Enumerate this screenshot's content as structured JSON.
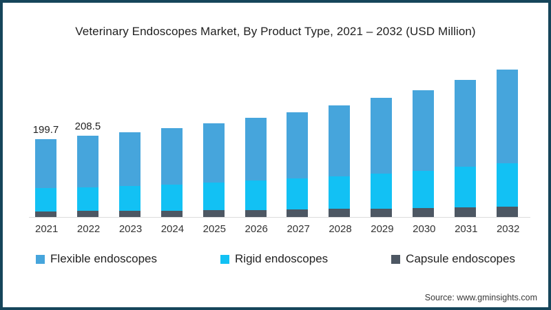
{
  "page": {
    "title": "Veterinary Endoscopes Market, By Product Type, 2021 – 2032 (USD Million)",
    "source": "Source: www.gminsights.com"
  },
  "colors": {
    "flexible": "#46A5DC",
    "rigid": "#12C1F4",
    "capsule": "#4D5763",
    "border": "#16455A",
    "baseline": "#DCDCDC",
    "title_text": "#1F1F1F",
    "axis_text": "#333333"
  },
  "chart_data": {
    "type": "bar",
    "stacked": true,
    "title": "Veterinary Endoscopes Market, By Product Type, 2021 – 2032 (USD Million)",
    "unit": "USD Million",
    "xlabel": "",
    "ylabel": "",
    "grid": false,
    "legend_position": "bottom",
    "categories": [
      "2021",
      "2022",
      "2023",
      "2024",
      "2025",
      "2026",
      "2027",
      "2028",
      "2029",
      "2030",
      "2031",
      "2032"
    ],
    "series": [
      {
        "name": "Flexible endoscopes",
        "color_key": "flexible",
        "values": [
          126.3,
          131.9,
          137.7,
          144.5,
          151.7,
          160.8,
          170.2,
          180.7,
          193.1,
          206.1,
          221.9,
          239.1
        ]
      },
      {
        "name": "Rigid endoscopes",
        "color_key": "rigid",
        "values": [
          58.8,
          61.4,
          64.0,
          67.1,
          70.4,
          74.6,
          78.9,
          83.7,
          89.4,
          95.4,
          102.7,
          110.6
        ]
      },
      {
        "name": "Capsule endoscopes",
        "color_key": "capsule",
        "values": [
          14.6,
          15.2,
          15.8,
          16.6,
          17.4,
          18.4,
          19.5,
          20.7,
          22.0,
          23.5,
          25.4,
          27.3
        ]
      }
    ],
    "totals": [
      199.7,
      208.5,
      217.5,
      228.2,
      239.5,
      253.8,
      268.6,
      285.1,
      304.5,
      325.0,
      350.0,
      377.0
    ],
    "data_labels": {
      "2021": "199.7",
      "2022": "208.5"
    },
    "legend": [
      "Flexible endoscopes",
      "Rigid endoscopes",
      "Capsule endoscopes"
    ]
  }
}
